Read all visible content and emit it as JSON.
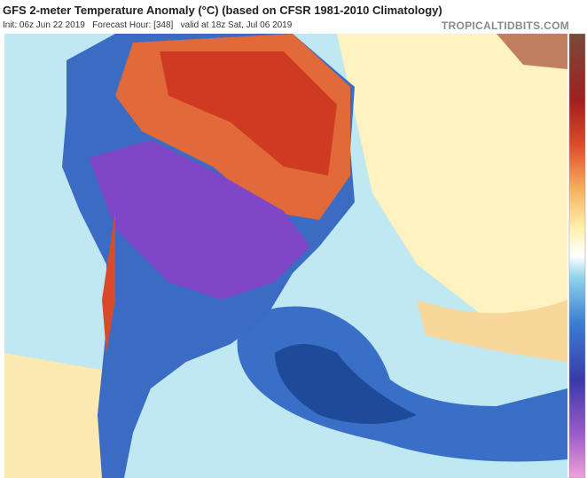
{
  "header": {
    "title": "GFS 2-meter Temperature Anomaly (°C) (based on CFSR 1981-2010 Climatology)",
    "subtitle": "Init: 06z Jun 22 2019   Forecast Hour: [348]   valid at 18z Sat, Jul 06 2019",
    "watermark": "TROPICALTIDBITS.COM"
  }
}
